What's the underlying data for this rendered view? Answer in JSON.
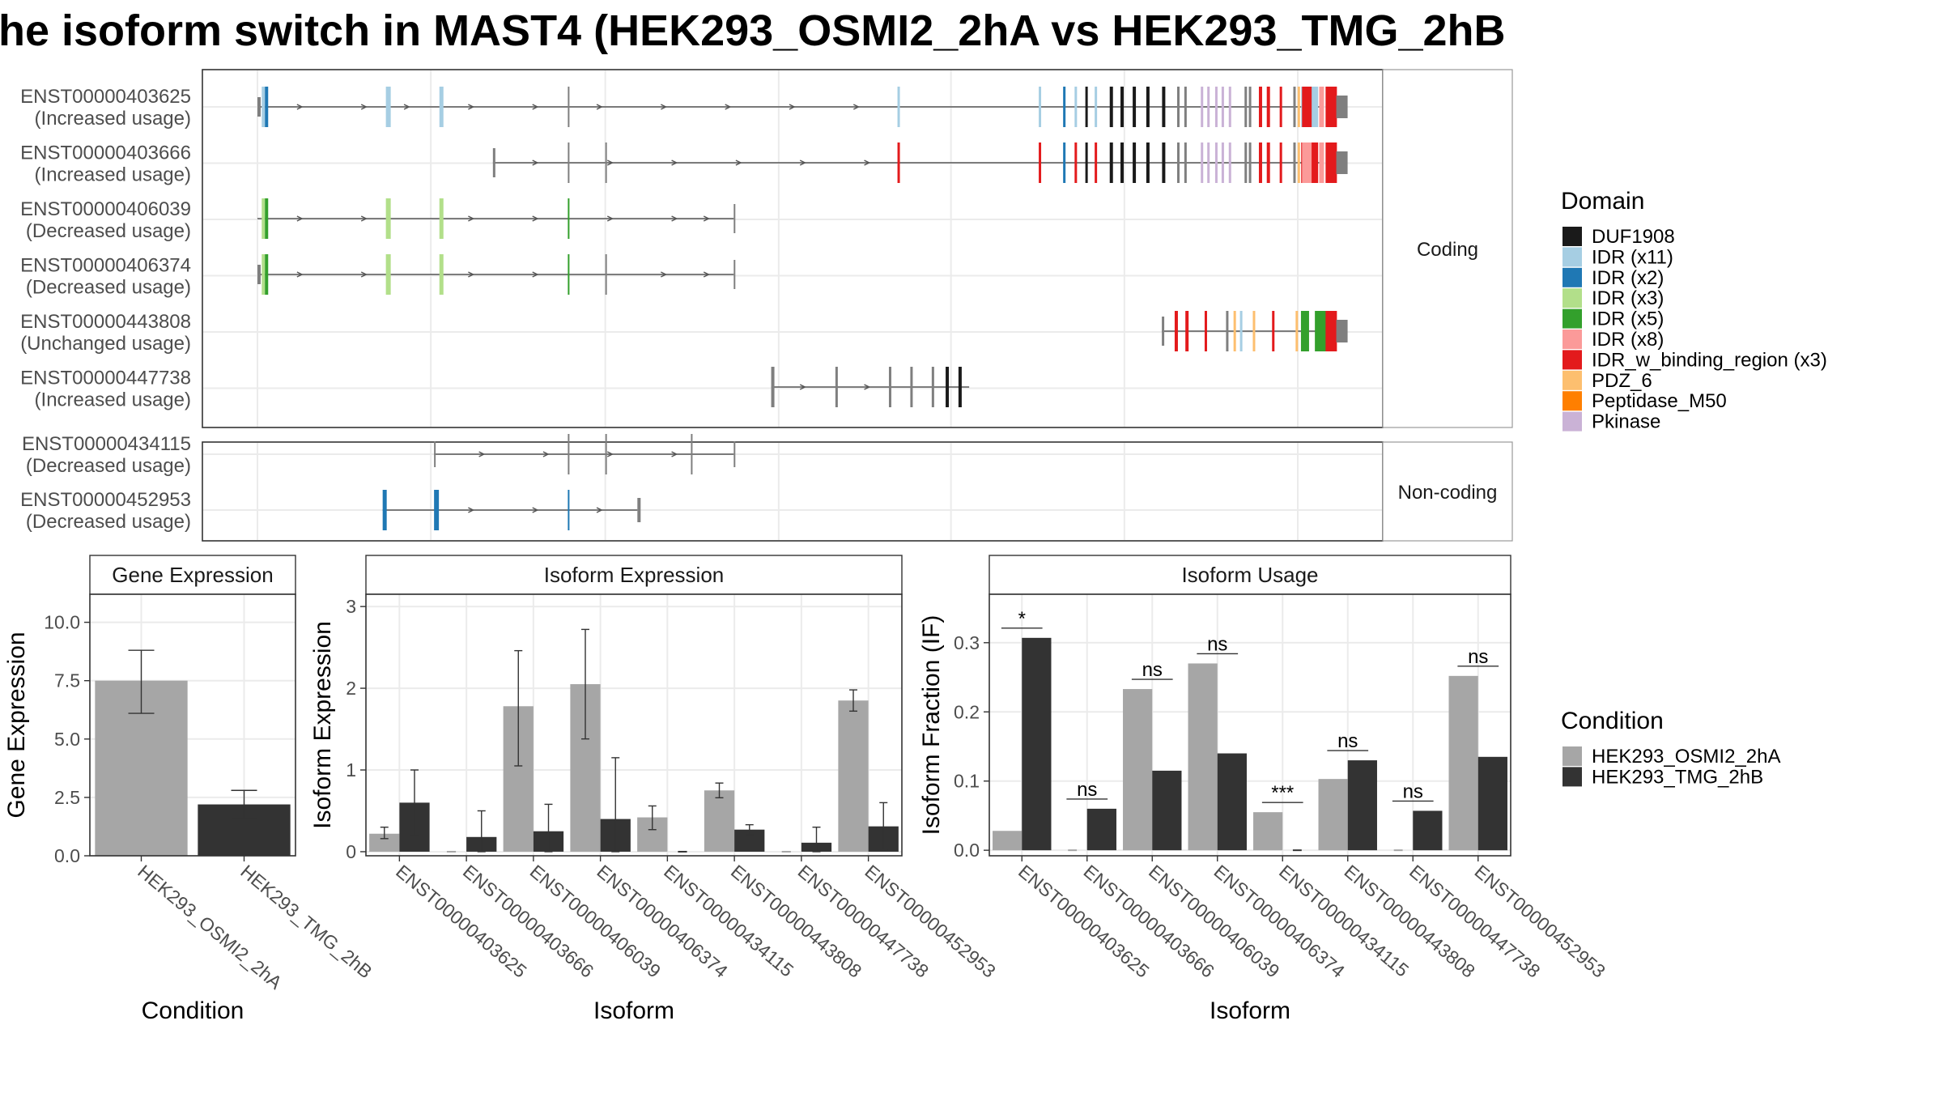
{
  "title": "he isoform switch in MAST4 (HEK293_OSMI2_2hA vs HEK293_TMG_2hB",
  "colors": {
    "osmi": "#a6a6a6",
    "tmg": "#333333",
    "grid": "#ebebeb",
    "panel_border": "#333333",
    "strip_bg": "#ffffff",
    "grey_exon": "#7f7f7f",
    "text": "#4d4d4d"
  },
  "domain_legend": {
    "title": "Domain",
    "items": [
      {
        "label": "DUF1908",
        "color": "#1a1a1a"
      },
      {
        "label": "IDR (x11)",
        "color": "#a6cee3"
      },
      {
        "label": "IDR (x2)",
        "color": "#1f78b4"
      },
      {
        "label": "IDR (x3)",
        "color": "#b2df8a"
      },
      {
        "label": "IDR (x5)",
        "color": "#33a02c"
      },
      {
        "label": "IDR (x8)",
        "color": "#fb9a99"
      },
      {
        "label": "IDR_w_binding_region (x3)",
        "color": "#e31a1c"
      },
      {
        "label": "PDZ_6",
        "color": "#fdbf6f"
      },
      {
        "label": "Peptidase_M50",
        "color": "#ff7f00"
      },
      {
        "label": "Pkinase",
        "color": "#cab2d6"
      }
    ]
  },
  "condition_legend": {
    "title": "Condition",
    "items": [
      {
        "label": "HEK293_OSMI2_2hA",
        "color": "#a6a6a6"
      },
      {
        "label": "HEK293_TMG_2hB",
        "color": "#333333"
      }
    ]
  },
  "structure": {
    "coding_label": "Coding",
    "noncoding_label": "Non-coding",
    "coding": [
      {
        "id": "ENST00000403625",
        "usage": "(Increased usage)",
        "span": [
          0.0,
          1.0
        ]
      },
      {
        "id": "ENST00000403666",
        "usage": "(Increased usage)",
        "span": [
          0.22,
          1.0
        ]
      },
      {
        "id": "ENST00000406039",
        "usage": "(Decreased usage)",
        "span": [
          0.0,
          0.445
        ]
      },
      {
        "id": "ENST00000406374",
        "usage": "(Decreased usage)",
        "span": [
          0.0,
          0.445
        ]
      },
      {
        "id": "ENST00000443808",
        "usage": "(Unchanged usage)",
        "span": [
          0.845,
          1.0
        ]
      },
      {
        "id": "ENST00000447738",
        "usage": "(Increased usage)",
        "span": [
          0.48,
          0.665
        ]
      }
    ],
    "noncoding": [
      {
        "id": "ENST00000434115",
        "usage": "(Decreased usage)",
        "span": [
          0.165,
          0.445
        ]
      },
      {
        "id": "ENST00000452953",
        "usage": "(Decreased usage)",
        "span": [
          0.117,
          0.355
        ]
      }
    ]
  },
  "chart_data": [
    {
      "type": "bar",
      "title": "Gene Expression",
      "xlabel": "Condition",
      "ylabel": "Gene Expression",
      "categories": [
        "HEK293_OSMI2_2hA",
        "HEK293_TMG_2hB"
      ],
      "values": [
        7.5,
        2.2
      ],
      "errors": [
        [
          6.1,
          8.8
        ],
        [
          1.6,
          2.8
        ]
      ],
      "bar_colors": [
        "#a6a6a6",
        "#333333"
      ],
      "yticks": [
        "0.0",
        "2.5",
        "5.0",
        "7.5",
        "10.0"
      ],
      "ylim": [
        0,
        11.2
      ]
    },
    {
      "type": "bar",
      "title": "Isoform Expression",
      "xlabel": "Isoform",
      "ylabel": "Isoform Expression",
      "categories": [
        "ENST00000403625",
        "ENST00000403666",
        "ENST00000406039",
        "ENST00000406374",
        "ENST00000434115",
        "ENST00000443808",
        "ENST00000447738",
        "ENST00000452953"
      ],
      "series": [
        {
          "name": "HEK293_OSMI2_2hA",
          "values": [
            0.22,
            0.0,
            1.78,
            2.05,
            0.42,
            0.75,
            0.0,
            1.85
          ],
          "errors": [
            [
              0.16,
              0.3
            ],
            [
              0.0,
              0.0
            ],
            [
              1.05,
              2.46
            ],
            [
              1.38,
              2.72
            ],
            [
              0.27,
              0.56
            ],
            [
              0.66,
              0.84
            ],
            [
              0.0,
              0.0
            ],
            [
              1.72,
              1.98
            ]
          ]
        },
        {
          "name": "HEK293_TMG_2hB",
          "values": [
            0.6,
            0.18,
            0.25,
            0.4,
            0.0,
            0.27,
            0.11,
            0.31
          ],
          "errors": [
            [
              0.2,
              1.0
            ],
            [
              0.0,
              0.5
            ],
            [
              0.0,
              0.58
            ],
            [
              0.0,
              1.15
            ],
            [
              0.0,
              0.0
            ],
            [
              0.21,
              0.33
            ],
            [
              0.0,
              0.3
            ],
            [
              0.02,
              0.6
            ]
          ]
        }
      ],
      "yticks": [
        "0",
        "1",
        "2",
        "3"
      ],
      "ylim": [
        -0.05,
        3.15
      ]
    },
    {
      "type": "bar",
      "title": "Isoform Usage",
      "xlabel": "Isoform",
      "ylabel": "Isoform Fraction (IF)",
      "categories": [
        "ENST00000403625",
        "ENST00000403666",
        "ENST00000406039",
        "ENST00000406374",
        "ENST00000434115",
        "ENST00000443808",
        "ENST00000447738",
        "ENST00000452953"
      ],
      "series": [
        {
          "name": "HEK293_OSMI2_2hA",
          "values": [
            0.028,
            0.0,
            0.233,
            0.27,
            0.055,
            0.103,
            0.0,
            0.252
          ]
        },
        {
          "name": "HEK293_TMG_2hB",
          "values": [
            0.307,
            0.06,
            0.115,
            0.14,
            0.0,
            0.13,
            0.057,
            0.135
          ]
        }
      ],
      "significance": [
        "*",
        "ns",
        "ns",
        "ns",
        "***",
        "ns",
        "ns",
        "ns"
      ],
      "yticks": [
        "0.0",
        "0.1",
        "0.2",
        "0.3"
      ],
      "ylim": [
        -0.008,
        0.37
      ]
    }
  ]
}
